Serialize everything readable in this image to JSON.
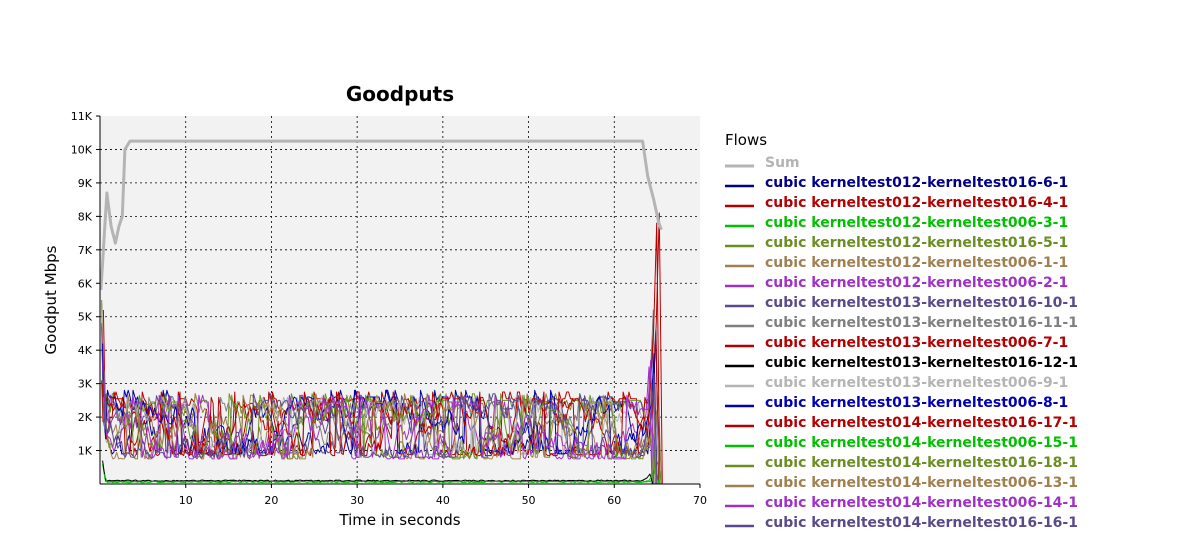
{
  "chart_data": {
    "type": "line",
    "title": "Goodputs",
    "xlabel": "Time in seconds",
    "ylabel": "Goodput Mbps",
    "xlim": [
      0,
      70
    ],
    "ylim": [
      0,
      11000
    ],
    "x_ticks": [
      10,
      20,
      30,
      40,
      50,
      60,
      70
    ],
    "x_tick_labels": [
      "10",
      "20",
      "30",
      "40",
      "50",
      "60",
      "70"
    ],
    "y_ticks": [
      1000,
      2000,
      3000,
      4000,
      5000,
      6000,
      7000,
      8000,
      9000,
      10000,
      11000
    ],
    "y_tick_labels": [
      "1K",
      "2K",
      "3K",
      "4K",
      "5K",
      "6K",
      "7K",
      "8K",
      "9K",
      "10K",
      "11K"
    ],
    "grid": true,
    "legend": {
      "title": "Flows",
      "position": "right"
    },
    "background": "#f2f2f2",
    "series": [
      {
        "name": "Sum",
        "color": "#b4b4b4",
        "kind": "sum",
        "points": [
          [
            0.1,
            5800
          ],
          [
            0.8,
            8700
          ],
          [
            1.3,
            7700
          ],
          [
            1.8,
            7200
          ],
          [
            2.2,
            7700
          ],
          [
            2.6,
            8000
          ],
          [
            2.9,
            10000
          ],
          [
            3.5,
            10250
          ],
          [
            10,
            10250
          ],
          [
            20,
            10250
          ],
          [
            30,
            10250
          ],
          [
            40,
            10250
          ],
          [
            50,
            10250
          ],
          [
            60,
            10250
          ],
          [
            63.3,
            10250
          ],
          [
            63.9,
            9200
          ],
          [
            64.6,
            8500
          ],
          [
            65.2,
            7800
          ],
          [
            65.5,
            7600
          ]
        ]
      },
      {
        "name": "cubic kerneltest012-kerneltest016-6-1",
        "color": "#00008b",
        "kind": "flow",
        "level": 1700,
        "spread": 500,
        "start": 0.2,
        "end": 65.2,
        "init": 4800,
        "endpeak": 4600
      },
      {
        "name": "cubic kerneltest012-kerneltest016-4-1",
        "color": "#b40000",
        "kind": "flow",
        "level": 1650,
        "spread": 500,
        "start": 0.2,
        "end": 65.6,
        "init": 3100,
        "endpeak": 8100
      },
      {
        "name": "cubic kerneltest012-kerneltest006-3-1",
        "color": "#00c000",
        "kind": "low",
        "level": 80,
        "start": 0.3,
        "end": 65.5,
        "init": 600,
        "endpeak": 700
      },
      {
        "name": "cubic kerneltest012-kerneltest016-5-1",
        "color": "#6b8e23",
        "kind": "flow",
        "level": 1600,
        "spread": 500,
        "start": 0.2,
        "end": 64.5,
        "init": 5500,
        "endpeak": 2300
      },
      {
        "name": "cubic kerneltest012-kerneltest006-1-1",
        "color": "#a08050",
        "kind": "flow",
        "level": 1600,
        "spread": 500,
        "start": 0.2,
        "end": 65.5,
        "init": 5400,
        "endpeak": 2600
      },
      {
        "name": "cubic kerneltest012-kerneltest006-2-1",
        "color": "#a030c8",
        "kind": "flow",
        "level": 1550,
        "spread": 500,
        "start": 0.2,
        "end": 64.4,
        "init": 4700,
        "endpeak": 3500
      },
      {
        "name": "cubic kerneltest013-kerneltest016-10-1",
        "color": "#5a4a8a",
        "kind": "flow",
        "level": 1650,
        "spread": 450,
        "start": 0.3,
        "end": 64.8,
        "init": 3300,
        "endpeak": 4300
      },
      {
        "name": "cubic kerneltest013-kerneltest016-11-1",
        "color": "#808080",
        "kind": "flow",
        "level": 1600,
        "spread": 450,
        "start": 0.3,
        "end": 64.9,
        "init": 2900,
        "endpeak": 5200
      },
      {
        "name": "cubic kerneltest013-kerneltest006-7-1",
        "color": "#b40000",
        "kind": "flow",
        "level": 1600,
        "spread": 450,
        "start": 0.3,
        "end": 65.2,
        "init": 3000,
        "endpeak": 4400
      },
      {
        "name": "cubic kerneltest013-kerneltest016-12-1",
        "color": "#000000",
        "kind": "low",
        "level": 100,
        "start": 0.3,
        "end": 64.5,
        "init": 700,
        "endpeak": 300
      },
      {
        "name": "cubic kerneltest013-kerneltest006-9-1",
        "color": "#b4b4b4",
        "kind": "flow",
        "level": 1600,
        "spread": 450,
        "start": 0.4,
        "end": 64.6,
        "init": 2600,
        "endpeak": 2700
      },
      {
        "name": "cubic kerneltest013-kerneltest006-8-1",
        "color": "#0000b4",
        "kind": "flow",
        "level": 1700,
        "spread": 500,
        "start": 0.3,
        "end": 65.0,
        "init": 4200,
        "endpeak": 3900
      },
      {
        "name": "cubic kerneltest014-kerneltest016-17-1",
        "color": "#b40000",
        "kind": "flow",
        "level": 1650,
        "spread": 500,
        "start": 0.4,
        "end": 65.3,
        "init": 5200,
        "endpeak": 7800
      },
      {
        "name": "cubic kerneltest014-kerneltest006-15-1",
        "color": "#00c000",
        "kind": "low",
        "level": 60,
        "start": 0.5,
        "end": 65.2,
        "init": 300,
        "endpeak": 500
      },
      {
        "name": "cubic kerneltest014-kerneltest016-18-1",
        "color": "#6b8e23",
        "kind": "flow",
        "level": 1550,
        "spread": 500,
        "start": 0.5,
        "end": 64.8,
        "init": 3400,
        "endpeak": 1800
      },
      {
        "name": "cubic kerneltest014-kerneltest006-13-1",
        "color": "#a08050",
        "kind": "flow",
        "level": 1550,
        "spread": 500,
        "start": 0.5,
        "end": 65.3,
        "init": 2800,
        "endpeak": 2200
      },
      {
        "name": "cubic kerneltest014-kerneltest006-14-1",
        "color": "#a030c8",
        "kind": "flow",
        "level": 1550,
        "spread": 500,
        "start": 0.4,
        "end": 64.6,
        "init": 3900,
        "endpeak": 3700
      },
      {
        "name": "cubic kerneltest014-kerneltest016-16-1",
        "color": "#5a4a8a",
        "kind": "flow",
        "level": 1600,
        "spread": 500,
        "start": 0.4,
        "end": 65.0,
        "init": 3100,
        "endpeak": 3300
      }
    ]
  }
}
